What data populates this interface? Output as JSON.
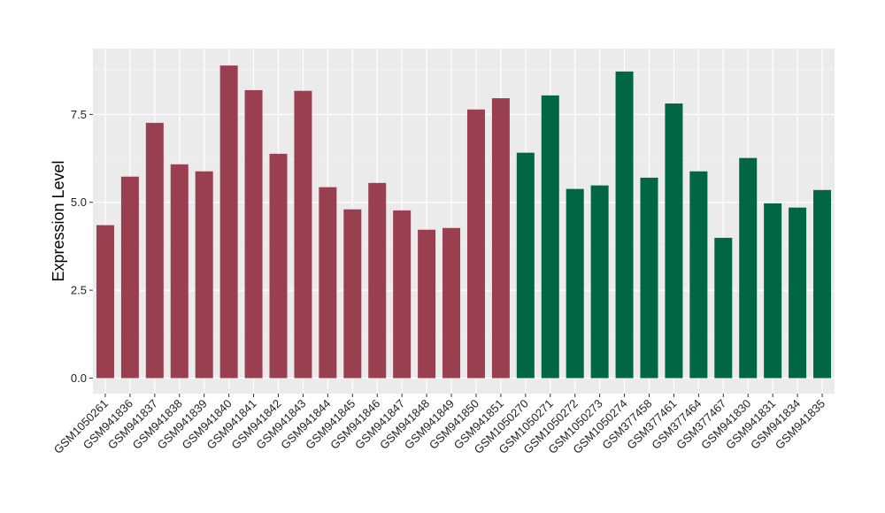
{
  "chart_data": {
    "type": "bar",
    "title": "",
    "xlabel": "",
    "ylabel": "Expression Level",
    "ylim": [
      -0.44,
      9.37
    ],
    "yticks": [
      "0.0",
      "2.5",
      "5.0",
      "7.5"
    ],
    "ytick_values": [
      0,
      2.5,
      5,
      7.5
    ],
    "grid": true,
    "categories": [
      "GSM1050261",
      "GSM941836",
      "GSM941837",
      "GSM941838",
      "GSM941839",
      "GSM941840",
      "GSM941841",
      "GSM941842",
      "GSM941843",
      "GSM941844",
      "GSM941845",
      "GSM941846",
      "GSM941847",
      "GSM941848",
      "GSM941849",
      "GSM941850",
      "GSM941851",
      "GSM1050270",
      "GSM1050271",
      "GSM1050272",
      "GSM1050273",
      "GSM1050274",
      "GSM377458",
      "GSM377461",
      "GSM377464",
      "GSM377467",
      "GSM941830",
      "GSM941831",
      "GSM941834",
      "GSM941835"
    ],
    "values": [
      4.35,
      5.73,
      7.26,
      6.08,
      5.88,
      8.89,
      8.19,
      6.38,
      8.17,
      5.43,
      4.8,
      5.55,
      4.77,
      4.22,
      4.27,
      7.64,
      7.96,
      6.41,
      8.04,
      5.38,
      5.48,
      8.72,
      5.7,
      7.81,
      5.88,
      3.99,
      6.26,
      4.97,
      4.85,
      5.35
    ],
    "groups": [
      0,
      0,
      0,
      0,
      0,
      0,
      0,
      0,
      0,
      0,
      0,
      0,
      0,
      0,
      0,
      0,
      0,
      1,
      1,
      1,
      1,
      1,
      1,
      1,
      1,
      1,
      1,
      1,
      1,
      1
    ],
    "colors": [
      "#9a3f50",
      "#006644"
    ]
  }
}
